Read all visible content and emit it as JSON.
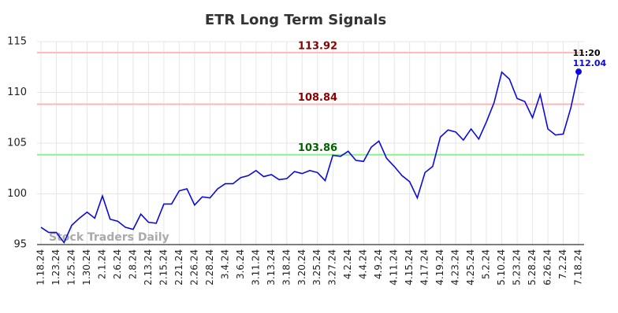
{
  "chart_data": {
    "type": "line",
    "title": "ETR Long Term Signals",
    "watermark": "Stock Traders Daily",
    "time_label": "11:20",
    "categories": [
      "1.18.24",
      null,
      "1.23.24",
      null,
      "1.25.24",
      null,
      "1.30.24",
      null,
      "2.1.24",
      null,
      "2.6.24",
      null,
      "2.8.24",
      null,
      "2.13.24",
      null,
      "2.15.24",
      null,
      "2.21.24",
      null,
      "2.26.24",
      null,
      "2.28.24",
      null,
      "3.4.24",
      null,
      "3.6.24",
      null,
      "3.11.24",
      null,
      "3.13.24",
      null,
      "3.18.24",
      null,
      "3.20.24",
      null,
      "3.25.24",
      null,
      "3.27.24",
      null,
      "4.2.24",
      null,
      "4.4.24",
      null,
      "4.9.24",
      null,
      "4.11.24",
      null,
      "4.15.24",
      null,
      "4.17.24",
      null,
      "4.19.24",
      null,
      "4.23.24",
      null,
      "4.25.24",
      null,
      "5.2.24",
      null,
      "5.10.24",
      null,
      "5.23.24",
      null,
      "5.28.24",
      null,
      "6.26.24",
      null,
      "7.2.24",
      null,
      "7.18.24"
    ],
    "values": [
      96.7,
      96.2,
      96.2,
      95.2,
      96.9,
      97.6,
      98.2,
      97.6,
      99.8,
      97.5,
      97.3,
      96.7,
      96.5,
      98.0,
      97.2,
      97.1,
      99.0,
      99.0,
      100.3,
      100.5,
      98.9,
      99.7,
      99.6,
      100.5,
      101.0,
      101.0,
      101.6,
      101.8,
      102.3,
      101.7,
      101.9,
      101.4,
      101.5,
      102.2,
      102.0,
      102.3,
      102.1,
      101.3,
      103.8,
      103.7,
      104.2,
      103.3,
      103.2,
      104.6,
      105.2,
      103.5,
      102.7,
      101.8,
      101.2,
      99.6,
      102.1,
      102.7,
      105.6,
      106.3,
      106.1,
      105.3,
      106.4,
      105.4,
      107.1,
      109.0,
      112.0,
      111.3,
      109.4,
      109.1,
      107.5,
      109.8,
      106.4,
      105.8,
      105.9,
      108.5,
      112.04
    ],
    "color": "#0a0ae0",
    "levels": [
      {
        "value": 113.92,
        "color": "#ffb8b8",
        "label_color": "#8b0000"
      },
      {
        "value": 108.84,
        "color": "#ffb8b8",
        "label_color": "#8b0000"
      },
      {
        "value": 103.86,
        "color": "#90ee90",
        "label_color": "#006400"
      }
    ],
    "ylim": [
      95,
      115
    ],
    "yticks": [
      95,
      100,
      105,
      110,
      115
    ],
    "grid": true
  }
}
